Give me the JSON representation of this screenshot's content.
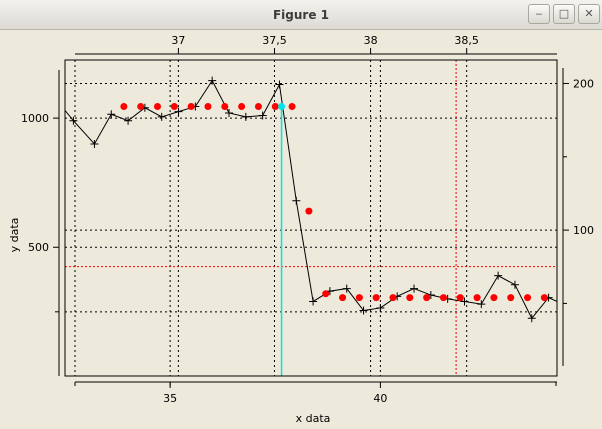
{
  "window": {
    "title": "Figure 1",
    "minimize_label": "‒",
    "maximize_label": "□",
    "close_label": "✕"
  },
  "chart_data": {
    "type": "line",
    "xlabel": "x data",
    "ylabel": "y data",
    "xlim": [
      32.5,
      44.2
    ],
    "ylim": [
      1.5,
      1225
    ],
    "x_ticks": [
      {
        "v": 35,
        "label": "35"
      },
      {
        "v": 40,
        "label": "40"
      }
    ],
    "y_ticks": [
      {
        "v": 500,
        "label": "500"
      },
      {
        "v": 1000,
        "label": "1000"
      }
    ],
    "top_xlim": [
      36.41,
      38.97
    ],
    "top_ticks": [
      {
        "v": 37,
        "label": "37"
      },
      {
        "v": 37.5,
        "label": "37,5"
      },
      {
        "v": 38,
        "label": "38"
      },
      {
        "v": 38.5,
        "label": "38,5"
      }
    ],
    "right_ylim": [
      0.5,
      216
    ],
    "right_ticks": [
      {
        "v": 100,
        "label": "100"
      },
      {
        "v": 200,
        "label": "200"
      }
    ],
    "grid": true,
    "series": [
      {
        "name": "",
        "color": "#000000",
        "marker": "+",
        "x": [
          32.3,
          32.7,
          33.2,
          33.6,
          34.0,
          34.4,
          34.8,
          35.2,
          35.6,
          36.0,
          36.4,
          36.8,
          37.2,
          37.6,
          38.0,
          38.4,
          38.8,
          39.2,
          39.6,
          40.0,
          40.4,
          40.8,
          41.2,
          41.6,
          42.0,
          42.4,
          42.8,
          43.2,
          43.6,
          44.0,
          44.4
        ],
        "y": [
          1070,
          990,
          900,
          1015,
          990,
          1040,
          1005,
          1025,
          1045,
          1145,
          1020,
          1005,
          1010,
          1130,
          680,
          290,
          330,
          340,
          255,
          265,
          310,
          340,
          315,
          300,
          290,
          280,
          390,
          355,
          225,
          305,
          275
        ]
      },
      {
        "name": "",
        "color": "#ff0000",
        "marker": "o",
        "x": [
          33.9,
          34.3,
          34.7,
          35.1,
          35.5,
          35.9,
          36.3,
          36.7,
          37.1,
          37.5,
          37.9,
          38.3,
          38.7,
          39.1,
          39.5,
          39.9,
          40.3,
          40.7,
          41.1,
          41.5,
          41.9,
          42.3,
          42.7,
          43.1,
          43.5,
          43.9
        ],
        "y": [
          1045,
          1045,
          1045,
          1045,
          1045,
          1045,
          1045,
          1045,
          1045,
          1045,
          1045,
          640,
          320,
          305,
          305,
          305,
          305,
          305,
          305,
          305,
          305,
          305,
          305,
          305,
          305,
          305
        ]
      }
    ],
    "highlight": {
      "color": "#00e5e5",
      "x": 37.65,
      "y": 1045
    },
    "crosshair": {
      "color": "#ff0000",
      "x": 41.8,
      "y": 425
    }
  }
}
